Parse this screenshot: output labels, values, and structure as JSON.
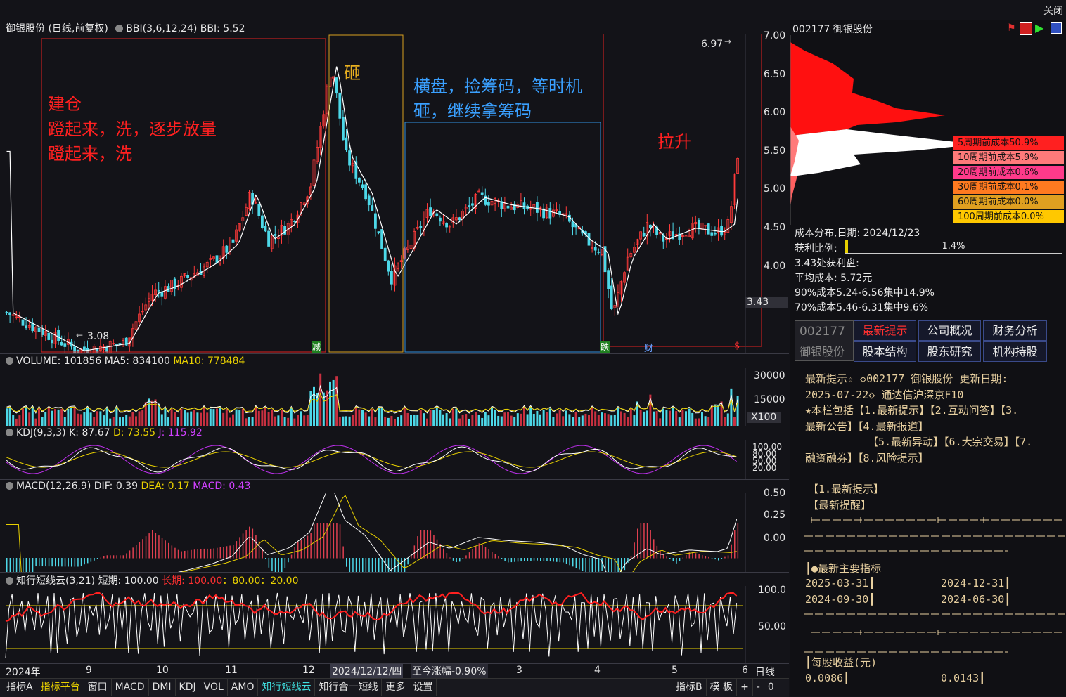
{
  "window": {
    "close": "关闭"
  },
  "price_header": {
    "title": "御银股份 (日线,前复权)",
    "indicator": "BBI(3,6,12,24)",
    "value": "BBI: 5.52"
  },
  "price_axis": [
    "7.00",
    "6.50",
    "6.00",
    "5.50",
    "5.00",
    "4.50",
    "4.00"
  ],
  "price_marks": {
    "high": "6.97",
    "low": "3.08",
    "current": "3.43"
  },
  "annotations": {
    "build": [
      "建仓",
      "蹬起来，洗，逐步放量",
      "蹬起来，洗"
    ],
    "smash": "砸",
    "sideways": [
      "横盘，捡筹码，等时机",
      "砸，继续拿筹码"
    ],
    "lift": "拉升"
  },
  "event_marks": {
    "reduce": "减",
    "fall": "跌",
    "fin": "财",
    "s": "$"
  },
  "volume_header": {
    "name": "VOLUME: 101856",
    "ma5": "MA5: 834100",
    "ma10": "MA10: 778484"
  },
  "volume_axis": [
    "30000",
    "15000",
    "X100"
  ],
  "kdj_header": {
    "name": "KDJ(9,3,3)",
    "k": "K: 87.67",
    "d": "D: 73.55",
    "j": "J: 115.92"
  },
  "kdj_axis": [
    "100.00",
    "80.00",
    "50.00",
    "20.00"
  ],
  "macd_header": {
    "name": "MACD(12,26,9)",
    "dif": "DIF: 0.39",
    "dea": "DEA: 0.17",
    "macd": "MACD: 0.43"
  },
  "macd_axis": [
    "0.50",
    "0.25",
    "0.00"
  ],
  "cloud_header": {
    "name": "知行短线云(3,21)",
    "short": "短期: 100.00",
    "long": "长期: 100.00",
    "rest": "：80.00：20.00"
  },
  "cloud_axis": [
    "100.0",
    "50.00"
  ],
  "time_axis": {
    "labels": [
      "2024年",
      "9",
      "10",
      "11",
      "12",
      "3",
      "4",
      "5",
      "6"
    ],
    "cursor": "2024/12/12/四",
    "change": "至今涨幅-0.90%",
    "period": "日线"
  },
  "bottom_tabs": [
    "指标A",
    "指标平台",
    "窗口",
    "MACD",
    "DMI",
    "KDJ",
    "VOL",
    "AMO",
    "知行短线云",
    "知行合一短线",
    "更多",
    "设置"
  ],
  "bottom_right": [
    "指标B",
    "模 板",
    "+",
    "-",
    "0"
  ],
  "stock": {
    "code": "002177",
    "name": "御银股份"
  },
  "cost_rows": [
    {
      "label": "5周期前成本50.9%",
      "color": "#ff2020"
    },
    {
      "label": "10周期前成本5.9%",
      "color": "#ff7a7a"
    },
    {
      "label": "20周期前成本0.6%",
      "color": "#ff3a8a"
    },
    {
      "label": "30周期前成本0.1%",
      "color": "#ff7a20"
    },
    {
      "label": "60周期前成本0.0%",
      "color": "#e0a020"
    },
    {
      "label": "100周期前成本0.0%",
      "color": "#ffc800"
    }
  ],
  "cost_info": {
    "date": "成本分布,日期: 2024/12/23",
    "profit_label": "获利比例:",
    "profit_value": "1.4%",
    "profit_fraction": 0.014,
    "profit_at": "3.43处获利盘:",
    "avg": "平均成本: 5.72元",
    "c90": "90%成本5.24-6.56集中14.9%",
    "c70": "70%成本5.46-6.31集中9.6%"
  },
  "f10_buttons": [
    "最新提示",
    "公司概况",
    "财务分析",
    "股本结构",
    "股东研究",
    "机构持股"
  ],
  "f10_text": {
    "l1": "最新提示☆ ◇002177 御银股份 更新日期:",
    "l2": "2025-07-22◇ 通达信沪深京F10",
    "l3": "★本栏包括【1.最新提示】【2.互动问答】【3.",
    "l4": "最新公告】【4.最新报道】",
    "l5": "【5.最新异动】【6.大宗交易】【7.",
    "l6": "融资融券】【8.风险提示】",
    "s1": "【1.最新提示】",
    "s2": "【最新提醒】",
    "main_ind": "┃●最新主要指标",
    "d1": "2025-03-31┃",
    "d2": "2024-12-31┃",
    "d3": "2024-09-30┃",
    "d4": "2024-06-30┃",
    "eps": "┃每股收益(元)",
    "v1": "0.0086┃",
    "v2": "0.0143┃"
  },
  "colors": {
    "up": "#ff3a3a",
    "down": "#4dd8e8",
    "bbi": "#ffffff",
    "yellow": "#e8d000",
    "magenta": "#d040ff"
  }
}
